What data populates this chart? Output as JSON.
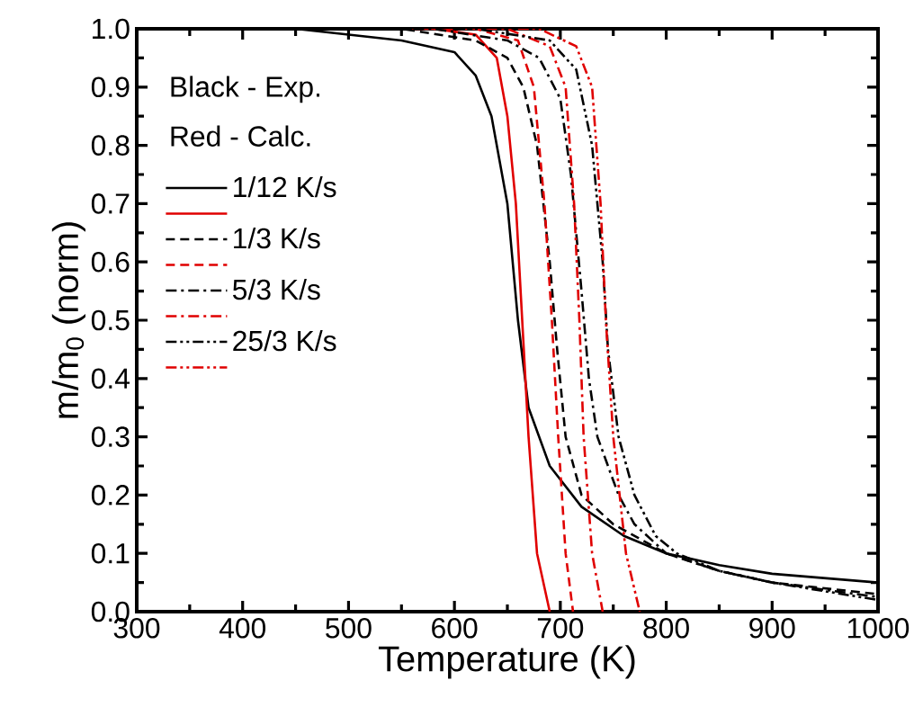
{
  "chart_data": {
    "type": "line",
    "xlabel": "Temperature (K)",
    "ylabel": "m/m$_{0}$ (norm)",
    "xlim": [
      300,
      1000
    ],
    "ylim": [
      0,
      1
    ],
    "xticks": [
      300,
      400,
      500,
      600,
      700,
      800,
      900,
      1000
    ],
    "yticks": [
      {
        "value": 0,
        "label": "0.0"
      },
      {
        "value": 0.1,
        "label": "0.1"
      },
      {
        "value": 0.2,
        "label": "0.2"
      },
      {
        "value": 0.3,
        "label": "0.3"
      },
      {
        "value": 0.4,
        "label": "0.4"
      },
      {
        "value": 0.5,
        "label": "0.5"
      },
      {
        "value": 0.6,
        "label": "0.6"
      },
      {
        "value": 0.7,
        "label": "0.7"
      },
      {
        "value": 0.8,
        "label": "0.8"
      },
      {
        "value": 0.9,
        "label": "0.9"
      },
      {
        "value": 1,
        "label": "1.0"
      }
    ],
    "grid": false,
    "legend": "top left",
    "annotations": [
      "Black - Exp.",
      "Red - Calc."
    ],
    "series": [
      {
        "name": "1/12 K/s",
        "color": "#000000",
        "line_style": "solid",
        "x": [
          300,
          450,
          500,
          550,
          600,
          620,
          635,
          650,
          660,
          670,
          690,
          720,
          760,
          800,
          850,
          900,
          1000
        ],
        "values": [
          1.0,
          1.0,
          0.99,
          0.98,
          0.96,
          0.92,
          0.85,
          0.7,
          0.5,
          0.35,
          0.25,
          0.18,
          0.13,
          0.1,
          0.08,
          0.065,
          0.05
        ]
      },
      {
        "color": "#e00000",
        "line_style": "solid",
        "x": [
          560,
          580,
          620,
          640,
          650,
          658,
          664,
          670,
          678,
          690
        ],
        "values": [
          1.0,
          1.0,
          0.99,
          0.95,
          0.85,
          0.7,
          0.5,
          0.3,
          0.1,
          0.0
        ]
      },
      {
        "name": "1/3 K/s",
        "color": "#000000",
        "line_style": "dashed",
        "x": [
          500,
          550,
          620,
          650,
          665,
          678,
          690,
          697,
          705,
          720,
          750,
          800,
          850,
          900,
          1000
        ],
        "values": [
          1.0,
          1.0,
          0.98,
          0.95,
          0.9,
          0.8,
          0.6,
          0.45,
          0.3,
          0.2,
          0.15,
          0.1,
          0.07,
          0.05,
          0.03
        ]
      },
      {
        "color": "#e00000",
        "line_style": "dashed",
        "x": [
          590,
          620,
          660,
          675,
          685,
          692,
          698,
          705,
          712
        ],
        "values": [
          1.0,
          1.0,
          0.98,
          0.9,
          0.7,
          0.5,
          0.3,
          0.1,
          0.0
        ]
      },
      {
        "name": "5/3 K/s",
        "color": "#000000",
        "line_style": "dashdot",
        "x": [
          540,
          580,
          650,
          680,
          700,
          710,
          720,
          727,
          735,
          755,
          770,
          800,
          850,
          900,
          1000
        ],
        "values": [
          1.0,
          1.0,
          0.98,
          0.95,
          0.88,
          0.75,
          0.55,
          0.4,
          0.3,
          0.2,
          0.15,
          0.1,
          0.07,
          0.05,
          0.025
        ]
      },
      {
        "color": "#e00000",
        "line_style": "dashdot",
        "x": [
          630,
          650,
          690,
          705,
          713,
          718,
          722,
          730,
          740
        ],
        "values": [
          1.0,
          1.0,
          0.97,
          0.9,
          0.7,
          0.5,
          0.3,
          0.1,
          0.0
        ]
      },
      {
        "name": "25/3 K/s",
        "color": "#000000",
        "line_style": "dashdotdot",
        "x": [
          600,
          620,
          690,
          715,
          730,
          740,
          745,
          755,
          770,
          790,
          810,
          850,
          900,
          1000
        ],
        "values": [
          1.0,
          1.0,
          0.98,
          0.93,
          0.8,
          0.6,
          0.45,
          0.3,
          0.2,
          0.13,
          0.1,
          0.07,
          0.05,
          0.02
        ]
      },
      {
        "color": "#e00000",
        "line_style": "dashdotdot",
        "x": [
          660,
          680,
          715,
          730,
          738,
          743,
          750,
          762,
          775
        ],
        "values": [
          1.0,
          1.0,
          0.97,
          0.9,
          0.7,
          0.5,
          0.3,
          0.1,
          0.0
        ]
      }
    ]
  }
}
